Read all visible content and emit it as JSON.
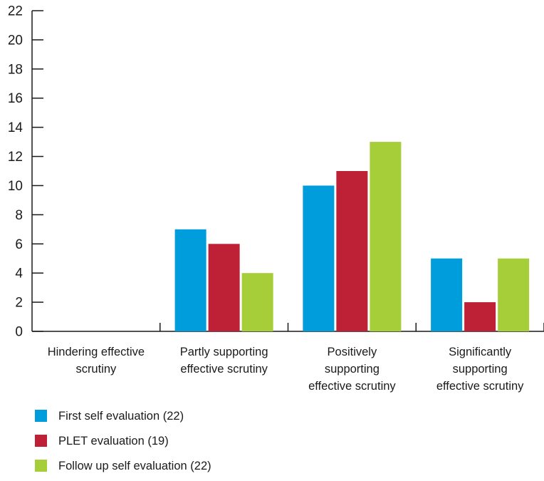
{
  "chart_data": {
    "type": "bar",
    "title": "",
    "xlabel": "",
    "ylabel": "",
    "ylim": [
      0,
      22
    ],
    "yticks": [
      0,
      2,
      4,
      6,
      8,
      10,
      12,
      14,
      16,
      18,
      20,
      22
    ],
    "grid": false,
    "legend_position": "bottom-left",
    "categories": [
      [
        "Hindering effective",
        "scrutiny"
      ],
      [
        "Partly supporting",
        "effective scrutiny"
      ],
      [
        "Positively",
        "supporting",
        "effective scrutiny"
      ],
      [
        "Significantly",
        "supporting",
        "effective scrutiny"
      ]
    ],
    "series": [
      {
        "name": "First self evaluation (22)",
        "color": "#009ddc",
        "values": [
          0,
          7,
          10,
          5
        ]
      },
      {
        "name": "PLET evaluation (19)",
        "color": "#be2036",
        "values": [
          0,
          6,
          11,
          2
        ]
      },
      {
        "name": "Follow up self evaluation (22)",
        "color": "#a6ce39",
        "values": [
          0,
          4,
          13,
          5
        ]
      }
    ]
  }
}
